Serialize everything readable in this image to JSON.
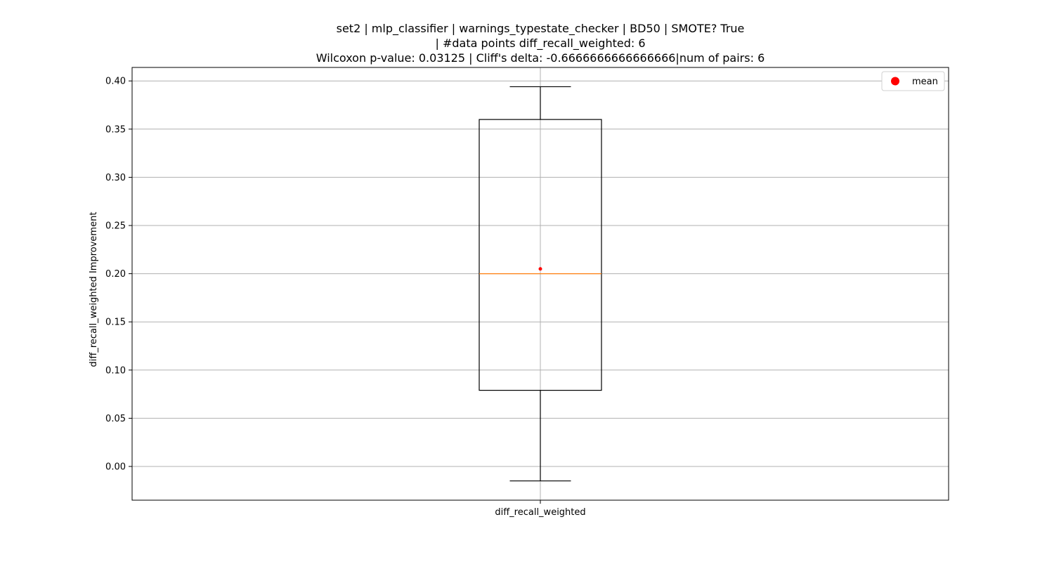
{
  "chart_data": {
    "type": "box",
    "title_lines": [
      "set2 | mlp_classifier | warnings_typestate_checker | BD50 | SMOTE? True",
      "| #data points diff_recall_weighted: 6",
      "Wilcoxon p-value: 0.03125 | Cliff's delta: -0.6666666666666666|num of pairs: 6"
    ],
    "xlabel": "",
    "ylabel": "diff_recall_weighted Improvement",
    "categories": [
      "diff_recall_weighted"
    ],
    "ylim": [
      -0.035,
      0.414
    ],
    "yticks": [
      0.0,
      0.05,
      0.1,
      0.15,
      0.2,
      0.25,
      0.3,
      0.35,
      0.4
    ],
    "ytick_labels": [
      "0.00",
      "0.05",
      "0.10",
      "0.15",
      "0.20",
      "0.25",
      "0.30",
      "0.35",
      "0.40"
    ],
    "grid": true,
    "boxes": [
      {
        "category": "diff_recall_weighted",
        "whisker_low": -0.015,
        "q1": 0.079,
        "median": 0.2,
        "q3": 0.36,
        "whisker_high": 0.394,
        "mean": 0.205
      }
    ],
    "legend": {
      "placement": "top-right",
      "entries": [
        {
          "label": "mean",
          "color": "#ff0000",
          "marker": "circle"
        }
      ]
    },
    "colors": {
      "box": "#000000",
      "median": "#ff7f0e",
      "mean": "#ff0000",
      "grid": "#b0b0b0"
    }
  }
}
